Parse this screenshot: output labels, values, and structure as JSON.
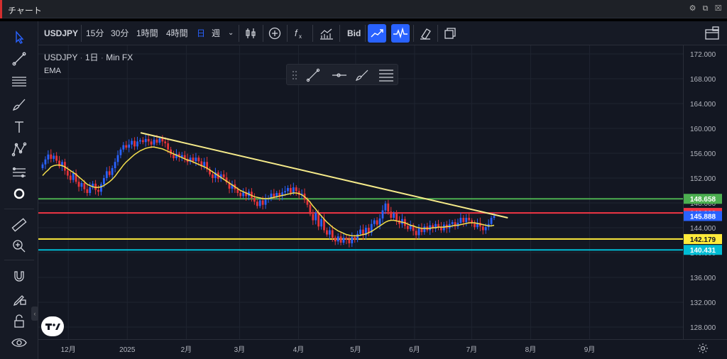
{
  "window": {
    "title": "チャート"
  },
  "toolbar": {
    "symbol": "USDJPY",
    "intervals": [
      "15分",
      "30分",
      "1時間",
      "4時間",
      "日",
      "週"
    ],
    "active_interval": "日",
    "price_type": "Bid"
  },
  "legend": {
    "symbol": "USDJPY",
    "interval": "1日",
    "broker": "Min FX",
    "indicator": "EMA"
  },
  "colors": {
    "up": "#2962ff",
    "down": "#e5343a",
    "ema": "#f4e04d",
    "trendline": "#f6eb8a",
    "line_green": "#4caf50",
    "line_red": "#f23645",
    "line_yellow": "#ffeb3b",
    "line_cyan": "#00bcd4",
    "last_price": "#2962ff"
  },
  "chart_data": {
    "type": "candlestick",
    "symbol": "USDJPY",
    "timeframe": "1日",
    "price_ticks": [
      "172.000",
      "168.000",
      "164.000",
      "160.000",
      "156.000",
      "152.000",
      "148.000",
      "144.000",
      "140.000",
      "136.000",
      "132.000",
      "128.000"
    ],
    "time_ticks": [
      "12月",
      "2025",
      "2月",
      "3月",
      "4月",
      "5月",
      "6月",
      "7月",
      "8月",
      "9月"
    ],
    "ylim": [
      127,
      174
    ],
    "horizontal_lines": [
      {
        "price": 148.658,
        "label": "148.658",
        "color": "#4caf50"
      },
      {
        "price": 146.392,
        "label": "146.392",
        "color": "#f23645"
      },
      {
        "price": 142.179,
        "label": "142.179",
        "color": "#ffeb3b"
      },
      {
        "price": 140.431,
        "label": "140.431",
        "color": "#00bcd4"
      }
    ],
    "last_price": {
      "price": 145.888,
      "label": "145.888"
    },
    "trendline": {
      "from": {
        "date": "2025-01-08",
        "price": 159.3
      },
      "to": {
        "date": "2025-07-20",
        "price": 145.6
      }
    },
    "closes": [
      154.2,
      155.0,
      155.8,
      155.1,
      155.6,
      154.8,
      153.9,
      154.6,
      153.2,
      152.4,
      151.7,
      152.8,
      151.4,
      150.6,
      151.2,
      150.2,
      149.6,
      150.5,
      151.1,
      150.1,
      149.8,
      151.0,
      152.0,
      153.1,
      152.5,
      153.6,
      154.6,
      155.7,
      156.6,
      157.3,
      156.9,
      157.4,
      158.0,
      157.1,
      157.9,
      158.1,
      157.8,
      158.3,
      157.9,
      157.4,
      158.2,
      157.7,
      158.4,
      157.9,
      157.6,
      156.6,
      155.8,
      155.2,
      155.9,
      155.4,
      155.7,
      155.1,
      154.6,
      155.3,
      154.7,
      155.3,
      154.7,
      153.9,
      154.6,
      153.4,
      152.6,
      152.0,
      152.9,
      151.9,
      152.6,
      152.1,
      151.3,
      150.3,
      151.0,
      150.2,
      149.6,
      149.1,
      149.7,
      149.1,
      149.8,
      148.8,
      148.2,
      147.5,
      148.4,
      147.7,
      148.6,
      148.8,
      149.5,
      149.0,
      149.6,
      149.1,
      149.7,
      149.9,
      150.4,
      149.6,
      150.5,
      149.9,
      149.3,
      149.5,
      148.5,
      147.7,
      146.2,
      145.2,
      146.4,
      144.2,
      145.4,
      143.6,
      142.9,
      143.6,
      142.4,
      141.8,
      142.6,
      141.6,
      142.4,
      142.1,
      141.5,
      142.5,
      142.1,
      143.0,
      143.7,
      142.8,
      144.0,
      143.2,
      144.6,
      145.2,
      144.5,
      145.5,
      146.8,
      147.9,
      146.6,
      145.6,
      146.3,
      145.2,
      144.6,
      145.4,
      144.3,
      143.8,
      144.4,
      143.5,
      142.8,
      143.9,
      143.3,
      144.2,
      143.6,
      144.4,
      143.9,
      144.6,
      144.1,
      143.6,
      144.5,
      143.9,
      144.6,
      144.9,
      144.2,
      144.8,
      145.6,
      144.9,
      145.6,
      145.2,
      144.7,
      144.1,
      144.8,
      144.2,
      143.6,
      144.1,
      144.6,
      145.6,
      145.9
    ],
    "ema": [
      152.4,
      152.9,
      153.3,
      153.8,
      154.0,
      154.1,
      154.1,
      154.0,
      153.8,
      153.5,
      153.2,
      152.9,
      152.6,
      152.2,
      151.8,
      151.4,
      151.0,
      150.8,
      150.6,
      150.5,
      150.5,
      150.6,
      150.8,
      151.1,
      151.4,
      151.8,
      152.3,
      152.9,
      153.5,
      154.1,
      154.6,
      155.0,
      155.4,
      155.8,
      156.1,
      156.4,
      156.6,
      156.8,
      156.9,
      157.0,
      157.0,
      156.9,
      156.8,
      156.7,
      156.5,
      156.3,
      156.1,
      155.9,
      155.7,
      155.5,
      155.3,
      155.1,
      154.9,
      154.8,
      154.6,
      154.4,
      154.2,
      154.0,
      153.8,
      153.6,
      153.3,
      153.0,
      152.7,
      152.4,
      152.1,
      151.8,
      151.5,
      151.2,
      150.9,
      150.6,
      150.3,
      150.0,
      149.8,
      149.6,
      149.4,
      149.2,
      149.0,
      148.9,
      148.8,
      148.7,
      148.7,
      148.7,
      148.8,
      148.9,
      149.0,
      149.1,
      149.2,
      149.3,
      149.4,
      149.5,
      149.6,
      149.6,
      149.5,
      149.3,
      149.0,
      148.6,
      148.1,
      147.5,
      147.0,
      146.4,
      145.9,
      145.4,
      144.9,
      144.5,
      144.1,
      143.8,
      143.5,
      143.3,
      143.1,
      142.9,
      142.8,
      142.7,
      142.7,
      142.7,
      142.8,
      142.9,
      143.0,
      143.2,
      143.4,
      143.7,
      144.0,
      144.3,
      144.6,
      144.9,
      145.1,
      145.2,
      145.2,
      145.1,
      145.0,
      144.9,
      144.8,
      144.6,
      144.4,
      144.3,
      144.1,
      144.0,
      143.9,
      143.9,
      143.9,
      143.9,
      144.0,
      144.0,
      144.1,
      144.1,
      144.1,
      144.2,
      144.2,
      144.3,
      144.4,
      144.4,
      144.5,
      144.6,
      144.7,
      144.8,
      144.8,
      144.8,
      144.7,
      144.6,
      144.5,
      144.4,
      144.3,
      144.3,
      144.4,
      144.7,
      144.9
    ]
  }
}
